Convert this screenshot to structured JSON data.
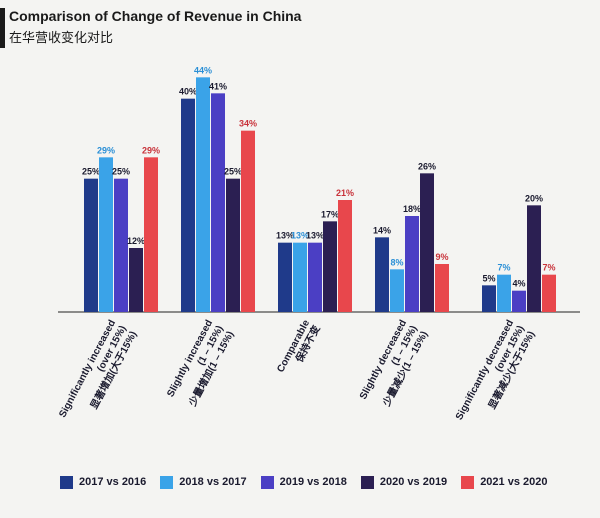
{
  "header": {
    "title": "Comparison of Change of Revenue in China",
    "subtitle": "在华营收变化对比"
  },
  "chart_data": {
    "type": "bar",
    "title": "Comparison of Change of Revenue in China",
    "subtitle": "在华营收变化对比",
    "categories": [
      [
        "Significantly increased",
        "(over 15%)",
        "显著增加(大于15%)"
      ],
      [
        "Slightly increased",
        "(1 – 15%)",
        "少量增加(1 – 15%)"
      ],
      [
        "Comparable",
        "保持不变"
      ],
      [
        "Slightly decreased",
        "(1 – 15%)",
        "少量减少(1 – 15%)"
      ],
      [
        "Significantly decreased",
        "(over 15%)",
        "显著减少(大于15%)"
      ]
    ],
    "series": [
      {
        "name": "2017 vs 2016",
        "color": "#1f3a8a",
        "values": [
          25,
          40,
          13,
          14,
          5
        ]
      },
      {
        "name": "2018 vs 2017",
        "color": "#3aa3e8",
        "values": [
          29,
          44,
          13,
          8,
          7
        ]
      },
      {
        "name": "2019 vs 2018",
        "color": "#4b3fc4",
        "values": [
          25,
          41,
          13,
          18,
          4
        ]
      },
      {
        "name": "2020 vs 2019",
        "color": "#2b1f52",
        "values": [
          12,
          25,
          17,
          26,
          20
        ]
      },
      {
        "name": "2021 vs 2020",
        "color": "#e8474c",
        "values": [
          29,
          34,
          21,
          9,
          7
        ]
      }
    ],
    "value_suffix": "%",
    "ylim": [
      0,
      45
    ],
    "grid": false,
    "legend_position": "bottom"
  }
}
